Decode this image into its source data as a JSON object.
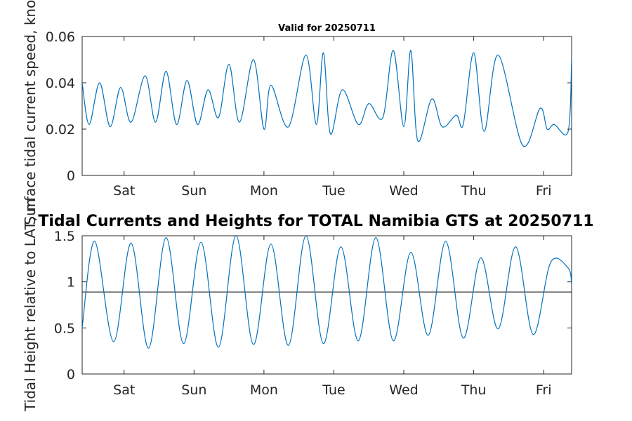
{
  "chart_data": [
    {
      "type": "line",
      "title": "Valid for 20250711",
      "ylabel": "Surface tidal current speed, knots",
      "xlabel": "",
      "ylim": [
        0,
        0.06
      ],
      "yticks": [
        0,
        0.02,
        0.04,
        0.06
      ],
      "ytick_labels": [
        "0",
        "0.02",
        "0.04",
        "0.06"
      ],
      "xlim": [
        0,
        7
      ],
      "xticks": [
        0.6,
        1.6,
        2.6,
        3.6,
        4.6,
        5.6,
        6.6
      ],
      "xtick_labels": [
        "Sat",
        "Sun",
        "Mon",
        "Tue",
        "Wed",
        "Thu",
        "Fri"
      ],
      "line_color": "#0072BD",
      "series": [
        {
          "x": [
            0.0,
            0.1,
            0.25,
            0.4,
            0.55,
            0.7,
            0.9,
            1.05,
            1.2,
            1.35,
            1.5,
            1.65,
            1.8,
            1.95,
            2.1,
            2.25,
            2.45,
            2.6,
            2.7,
            2.95,
            3.2,
            3.35,
            3.45,
            3.55,
            3.72,
            3.95,
            4.1,
            4.3,
            4.45,
            4.6,
            4.7,
            4.8,
            5.0,
            5.15,
            5.35,
            5.45,
            5.6,
            5.75,
            5.95,
            6.3,
            6.55,
            6.65,
            6.75,
            6.95,
            7.0
          ],
          "y": [
            0.04,
            0.022,
            0.04,
            0.021,
            0.038,
            0.023,
            0.043,
            0.023,
            0.045,
            0.022,
            0.041,
            0.022,
            0.037,
            0.025,
            0.048,
            0.023,
            0.05,
            0.02,
            0.039,
            0.021,
            0.052,
            0.022,
            0.053,
            0.018,
            0.037,
            0.022,
            0.031,
            0.025,
            0.054,
            0.021,
            0.054,
            0.015,
            0.033,
            0.021,
            0.026,
            0.022,
            0.053,
            0.019,
            0.052,
            0.013,
            0.029,
            0.02,
            0.022,
            0.019,
            0.05
          ]
        }
      ]
    },
    {
      "type": "line",
      "title": "Tidal Currents and Heights for TOTAL Namibia GTS at 20250711",
      "ylabel": "Tidal Height relative to LAT, m",
      "xlabel": "",
      "ylim": [
        0,
        1.5
      ],
      "yticks": [
        0,
        0.5,
        1,
        1.5
      ],
      "ytick_labels": [
        "0",
        "0.5",
        "1",
        "1.5"
      ],
      "xlim": [
        0,
        7
      ],
      "xticks": [
        0.6,
        1.6,
        2.6,
        3.6,
        4.6,
        5.6,
        6.6
      ],
      "xtick_labels": [
        "Sat",
        "Sun",
        "Mon",
        "Tue",
        "Wed",
        "Thu",
        "Fri"
      ],
      "line_color": "#0072BD",
      "reference_line": 0.89,
      "reference_color": "#000000",
      "series": [
        {
          "x": [
            0.0,
            0.18,
            0.45,
            0.7,
            0.95,
            1.2,
            1.45,
            1.7,
            1.95,
            2.2,
            2.45,
            2.7,
            2.95,
            3.2,
            3.45,
            3.7,
            3.95,
            4.2,
            4.45,
            4.7,
            4.95,
            5.2,
            5.45,
            5.7,
            5.95,
            6.2,
            6.45,
            6.7,
            6.95,
            7.0
          ],
          "y": [
            0.5,
            1.44,
            0.35,
            1.42,
            0.28,
            1.48,
            0.33,
            1.43,
            0.29,
            1.5,
            0.32,
            1.41,
            0.31,
            1.5,
            0.33,
            1.38,
            0.36,
            1.48,
            0.36,
            1.32,
            0.42,
            1.44,
            0.39,
            1.26,
            0.49,
            1.38,
            0.43,
            1.21,
            1.15,
            0.98
          ]
        }
      ]
    }
  ]
}
